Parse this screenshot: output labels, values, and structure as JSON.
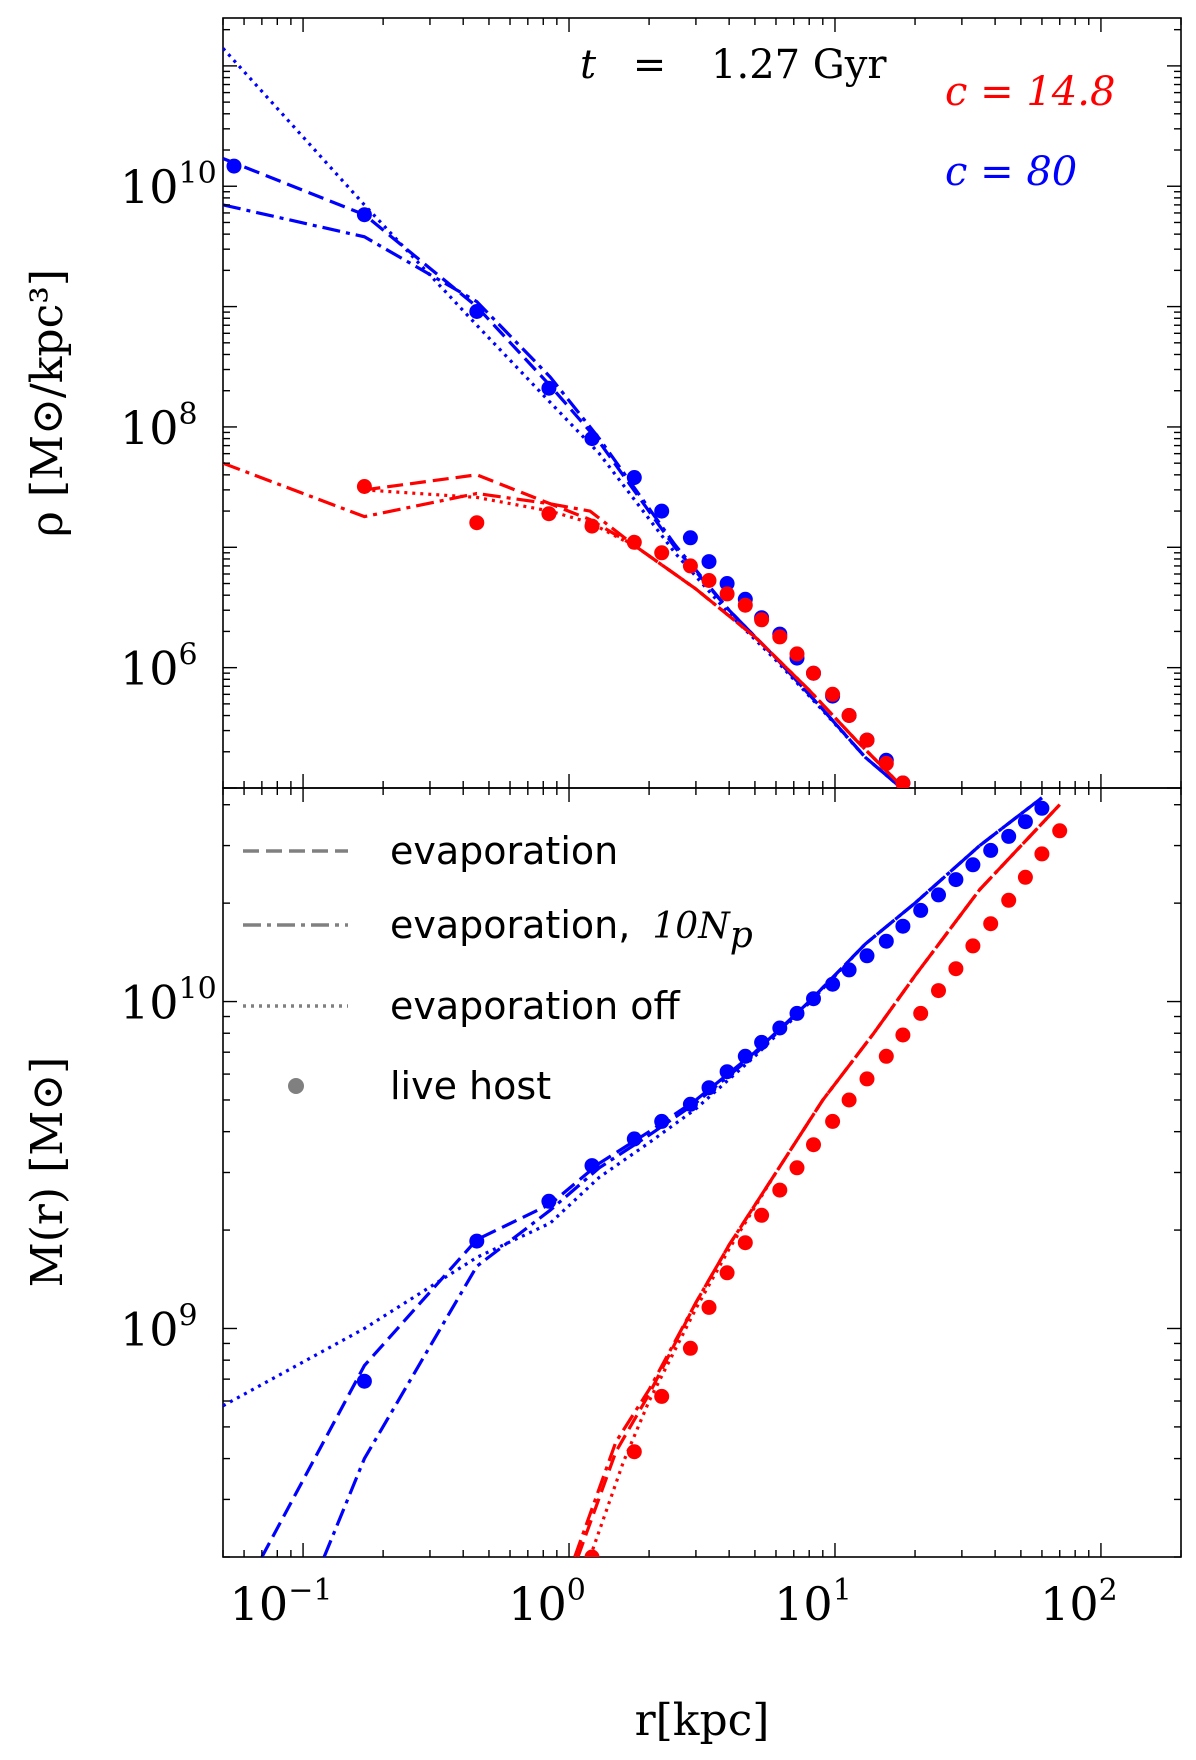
{
  "chart_data": {
    "type": "line",
    "time_annotation": {
      "variable": "t",
      "equals": "=",
      "value": "1.27 Gyr"
    },
    "concentration_labels": [
      {
        "text": "c = 14.8",
        "color": "#ff0000"
      },
      {
        "text": "c = 80",
        "color": "#0000ff"
      }
    ],
    "x_axis": {
      "label": "r[kpc]",
      "scale": "log",
      "xlim": [
        0.05,
        200
      ],
      "ticks": [
        {
          "value": 0.1,
          "base": "10",
          "exp": "−1"
        },
        {
          "value": 1,
          "base": "10",
          "exp": "0"
        },
        {
          "value": 10,
          "base": "10",
          "exp": "1"
        },
        {
          "value": 100,
          "base": "10",
          "exp": "2"
        }
      ]
    },
    "legend": [
      {
        "label": "evaporation",
        "style": "dashed"
      },
      {
        "label": "evaporation,",
        "math": "10N",
        "math_sub": "p",
        "style": "dashdot"
      },
      {
        "label": "evaporation off",
        "style": "dotted"
      },
      {
        "label": "live host",
        "style": "marker"
      }
    ],
    "panels": [
      {
        "name": "density",
        "ylabel": "ρ [M⊙/kpc³]",
        "scale": "log",
        "ylim": [
          100000.0,
          250000000000.0
        ],
        "ticks": [
          {
            "value": 1000000.0,
            "base": "10",
            "exp": "6"
          },
          {
            "value": 100000000.0,
            "base": "10",
            "exp": "8"
          },
          {
            "value": 10000000000.0,
            "base": "10",
            "exp": "10"
          }
        ],
        "series": [
          {
            "name": "c=80 evaporation",
            "color": "#0000ff",
            "style": "dashed",
            "x": [
              0.05,
              0.17,
              0.45,
              0.85,
              1.3,
              2.5,
              4.0,
              6.0,
              9.0,
              13.0,
              20.0
            ],
            "y": [
              17000000000.0,
              5800000000.0,
              1000000000.0,
              220000000.0,
              75000000.0,
              10000000.0,
              3000000.0,
              1200000.0,
              450000.0,
              180000.0,
              80000.0
            ]
          },
          {
            "name": "c=80 evaporation 10Np",
            "color": "#0000ff",
            "style": "dashdot",
            "x": [
              0.05,
              0.17,
              0.45,
              0.85,
              1.3,
              2.5,
              4.0,
              6.0,
              9.0,
              13.0,
              20.0
            ],
            "y": [
              7000000000.0,
              3800000000.0,
              1100000000.0,
              260000000.0,
              80000000.0,
              10500000.0,
              3000000.0,
              1200000.0,
              450000.0,
              180000.0,
              80000.0
            ]
          },
          {
            "name": "c=80 evaporation off",
            "color": "#0000ff",
            "style": "dotted",
            "x": [
              0.05,
              0.17,
              0.45,
              0.85,
              1.3,
              2.5,
              4.0,
              6.0,
              9.0,
              13.0,
              20.0
            ],
            "y": [
              140000000000.0,
              7000000000.0,
              700000000.0,
              160000000.0,
              60000000.0,
              9000000.0,
              2800000.0,
              1150000.0,
              440000.0,
              180000.0,
              80000.0
            ]
          },
          {
            "name": "c=14.8 evaporation",
            "color": "#ff0000",
            "style": "dashed",
            "x": [
              0.17,
              0.45,
              0.85,
              1.2,
              1.8,
              3.0,
              5.0,
              8.0,
              12.0,
              20.0
            ],
            "y": [
              30000000.0,
              40000000.0,
              23000000.0,
              17000000.0,
              10000000.0,
              4500000.0,
              1800000.0,
              650000.0,
              250000.0,
              80000.0
            ]
          },
          {
            "name": "c=14.8 evaporation 10Np",
            "color": "#ff0000",
            "style": "dashdot",
            "x": [
              0.05,
              0.17,
              0.45,
              0.85,
              1.2,
              1.8,
              3.0,
              5.0,
              8.0,
              12.0,
              20.0
            ],
            "y": [
              50000000.0,
              18000000.0,
              28000000.0,
              23000000.0,
              20000000.0,
              10000000.0,
              4500000.0,
              1800000.0,
              650000.0,
              250000.0,
              80000.0
            ]
          },
          {
            "name": "c=14.8 evaporation off",
            "color": "#ff0000",
            "style": "dotted",
            "x": [
              0.17,
              0.45,
              0.85,
              1.2,
              1.8,
              3.0,
              5.0,
              8.0,
              12.0,
              20.0
            ],
            "y": [
              30000000.0,
              26000000.0,
              20000000.0,
              16000000.0,
              10000000.0,
              4500000.0,
              1800000.0,
              650000.0,
              250000.0,
              80000.0
            ]
          }
        ],
        "points": [
          {
            "name": "c=80 live host",
            "color": "#0000ff",
            "x": [
              0.055,
              0.17,
              0.45,
              0.84,
              1.22,
              1.76,
              2.23,
              2.86,
              3.36,
              3.93,
              4.6,
              5.3,
              6.2,
              7.2,
              8.3,
              9.8,
              11.3,
              13.2,
              15.6,
              18.0
            ],
            "y": [
              14700000000.0,
              5800000000.0,
              910000000.0,
              210000000.0,
              80000000.0,
              38000000.0,
              20000000.0,
              12000000.0,
              7600000.0,
              5000000.0,
              3700000.0,
              2600000.0,
              1900000.0,
              1200000.0,
              900000.0,
              580000.0,
              400000.0,
              250000.0,
              170000.0,
              110000.0
            ]
          },
          {
            "name": "c=14.8 live host",
            "color": "#ff0000",
            "x": [
              0.17,
              0.45,
              0.84,
              1.22,
              1.76,
              2.23,
              2.86,
              3.36,
              3.93,
              4.6,
              5.3,
              6.2,
              7.2,
              8.3,
              9.8,
              11.3,
              13.2,
              15.6,
              18.0,
              20.5
            ],
            "y": [
              32000000.0,
              16000000.0,
              19000000.0,
              15000000.0,
              11000000.0,
              9000000.0,
              7000000.0,
              5300000.0,
              4100000.0,
              3300000.0,
              2500000.0,
              1800000.0,
              1300000.0,
              900000.0,
              600000.0,
              400000.0,
              250000.0,
              160000.0,
              110000.0,
              85000.0
            ]
          }
        ]
      },
      {
        "name": "enclosed_mass",
        "ylabel": "M(r) [M⊙]",
        "scale": "log",
        "ylim": [
          200000000.0,
          45000000000.0
        ],
        "ticks": [
          {
            "value": 1000000000.0,
            "base": "10",
            "exp": "9"
          },
          {
            "value": 10000000000.0,
            "base": "10",
            "exp": "10"
          }
        ],
        "series": [
          {
            "name": "c=80 evaporation",
            "color": "#0000ff",
            "style": "dashed",
            "x": [
              0.07,
              0.17,
              0.45,
              0.85,
              1.3,
              2.0,
              3.0,
              5.0,
              8.0,
              13.0,
              20.0,
              35.0,
              60.0
            ],
            "y": [
              200000000.0,
              770000000.0,
              1870000000.0,
              2400000000.0,
              3200000000.0,
              4000000000.0,
              5000000000.0,
              7000000000.0,
              10000000000.0,
              15000000000.0,
              20000000000.0,
              30000000000.0,
              42000000000.0
            ]
          },
          {
            "name": "c=80 evaporation 10Np",
            "color": "#0000ff",
            "style": "dashdot",
            "x": [
              0.12,
              0.17,
              0.45,
              0.85,
              1.3,
              2.0,
              3.0,
              5.0,
              8.0,
              13.0,
              20.0,
              35.0,
              60.0
            ],
            "y": [
              200000000.0,
              400000000.0,
              1550000000.0,
              2300000000.0,
              3100000000.0,
              3900000000.0,
              4900000000.0,
              6900000000.0,
              10000000000.0,
              15000000000.0,
              20000000000.0,
              30000000000.0,
              42000000000.0
            ]
          },
          {
            "name": "c=80 evaporation off",
            "color": "#0000ff",
            "style": "dotted",
            "x": [
              0.05,
              0.17,
              0.45,
              0.85,
              1.3,
              2.0,
              3.0,
              5.0,
              8.0,
              13.0,
              20.0,
              35.0,
              60.0
            ],
            "y": [
              580000000.0,
              1000000000.0,
              1650000000.0,
              2100000000.0,
              2900000000.0,
              3700000000.0,
              4700000000.0,
              6800000000.0,
              9900000000.0,
              15000000000.0,
              20000000000.0,
              30000000000.0,
              42000000000.0
            ]
          },
          {
            "name": "c=14.8 evaporation",
            "color": "#ff0000",
            "style": "dashed",
            "x": [
              1.08,
              1.5,
              2.0,
              3.0,
              4.0,
              6.0,
              9.0,
              14.0,
              20.0,
              35.0,
              70.0
            ],
            "y": [
              200000000.0,
              420000000.0,
              630000000.0,
              1200000000.0,
              1800000000.0,
              3000000000.0,
              5000000000.0,
              8000000000.0,
              12000000000.0,
              22000000000.0,
              40000000000.0
            ]
          },
          {
            "name": "c=14.8 evaporation 10Np",
            "color": "#ff0000",
            "style": "dashdot",
            "x": [
              1.05,
              1.5,
              2.0,
              3.0,
              4.0,
              6.0,
              9.0,
              14.0,
              20.0,
              35.0,
              70.0
            ],
            "y": [
              200000000.0,
              450000000.0,
              650000000.0,
              1200000000.0,
              1800000000.0,
              3000000000.0,
              5000000000.0,
              8000000000.0,
              12000000000.0,
              22000000000.0,
              40000000000.0
            ]
          },
          {
            "name": "c=14.8 evaporation off",
            "color": "#ff0000",
            "style": "dotted",
            "x": [
              1.2,
              1.6,
              2.0,
              3.0,
              4.0,
              6.0,
              9.0,
              14.0,
              20.0,
              35.0,
              70.0
            ],
            "y": [
              200000000.0,
              390000000.0,
              600000000.0,
              1150000000.0,
              1750000000.0,
              3000000000.0,
              5000000000.0,
              8000000000.0,
              12000000000.0,
              22000000000.0,
              40000000000.0
            ]
          }
        ],
        "points": [
          {
            "name": "c=80 live host",
            "color": "#0000ff",
            "x": [
              0.17,
              0.45,
              0.84,
              1.22,
              1.76,
              2.23,
              2.86,
              3.36,
              3.93,
              4.6,
              5.3,
              6.2,
              7.2,
              8.3,
              9.8,
              11.3,
              13.2,
              15.6,
              18.0,
              21.0,
              24.5,
              28.5,
              33.0,
              38.5,
              45.0,
              52.0,
              60.0
            ],
            "y": [
              690000000.0,
              1850000000.0,
              2450000000.0,
              3150000000.0,
              3800000000.0,
              4300000000.0,
              4850000000.0,
              5450000000.0,
              6100000000.0,
              6800000000.0,
              7500000000.0,
              8300000000.0,
              9200000000.0,
              10200000000.0,
              11300000000.0,
              12500000000.0,
              13800000000.0,
              15300000000.0,
              17000000000.0,
              19000000000.0,
              21200000000.0,
              23600000000.0,
              26200000000.0,
              29000000000.0,
              32000000000.0,
              35500000000.0,
              39000000000.0
            ]
          },
          {
            "name": "c=14.8 live host",
            "color": "#ff0000",
            "x": [
              1.22,
              1.76,
              2.23,
              2.86,
              3.36,
              3.93,
              4.6,
              5.3,
              6.2,
              7.2,
              8.3,
              9.8,
              11.3,
              13.2,
              15.6,
              18.0,
              21.0,
              24.5,
              28.5,
              33.0,
              38.5,
              45.0,
              52.0,
              60.0,
              70.0
            ],
            "y": [
              200000000.0,
              420000000.0,
              620000000.0,
              870000000.0,
              1160000000.0,
              1480000000.0,
              1830000000.0,
              2220000000.0,
              2650000000.0,
              3100000000.0,
              3650000000.0,
              4300000000.0,
              5000000000.0,
              5800000000.0,
              6800000000.0,
              7900000000.0,
              9200000000.0,
              10800000000.0,
              12600000000.0,
              14800000000.0,
              17300000000.0,
              20400000000.0,
              24000000000.0,
              28300000000.0,
              33300000000.0
            ]
          }
        ]
      }
    ]
  }
}
